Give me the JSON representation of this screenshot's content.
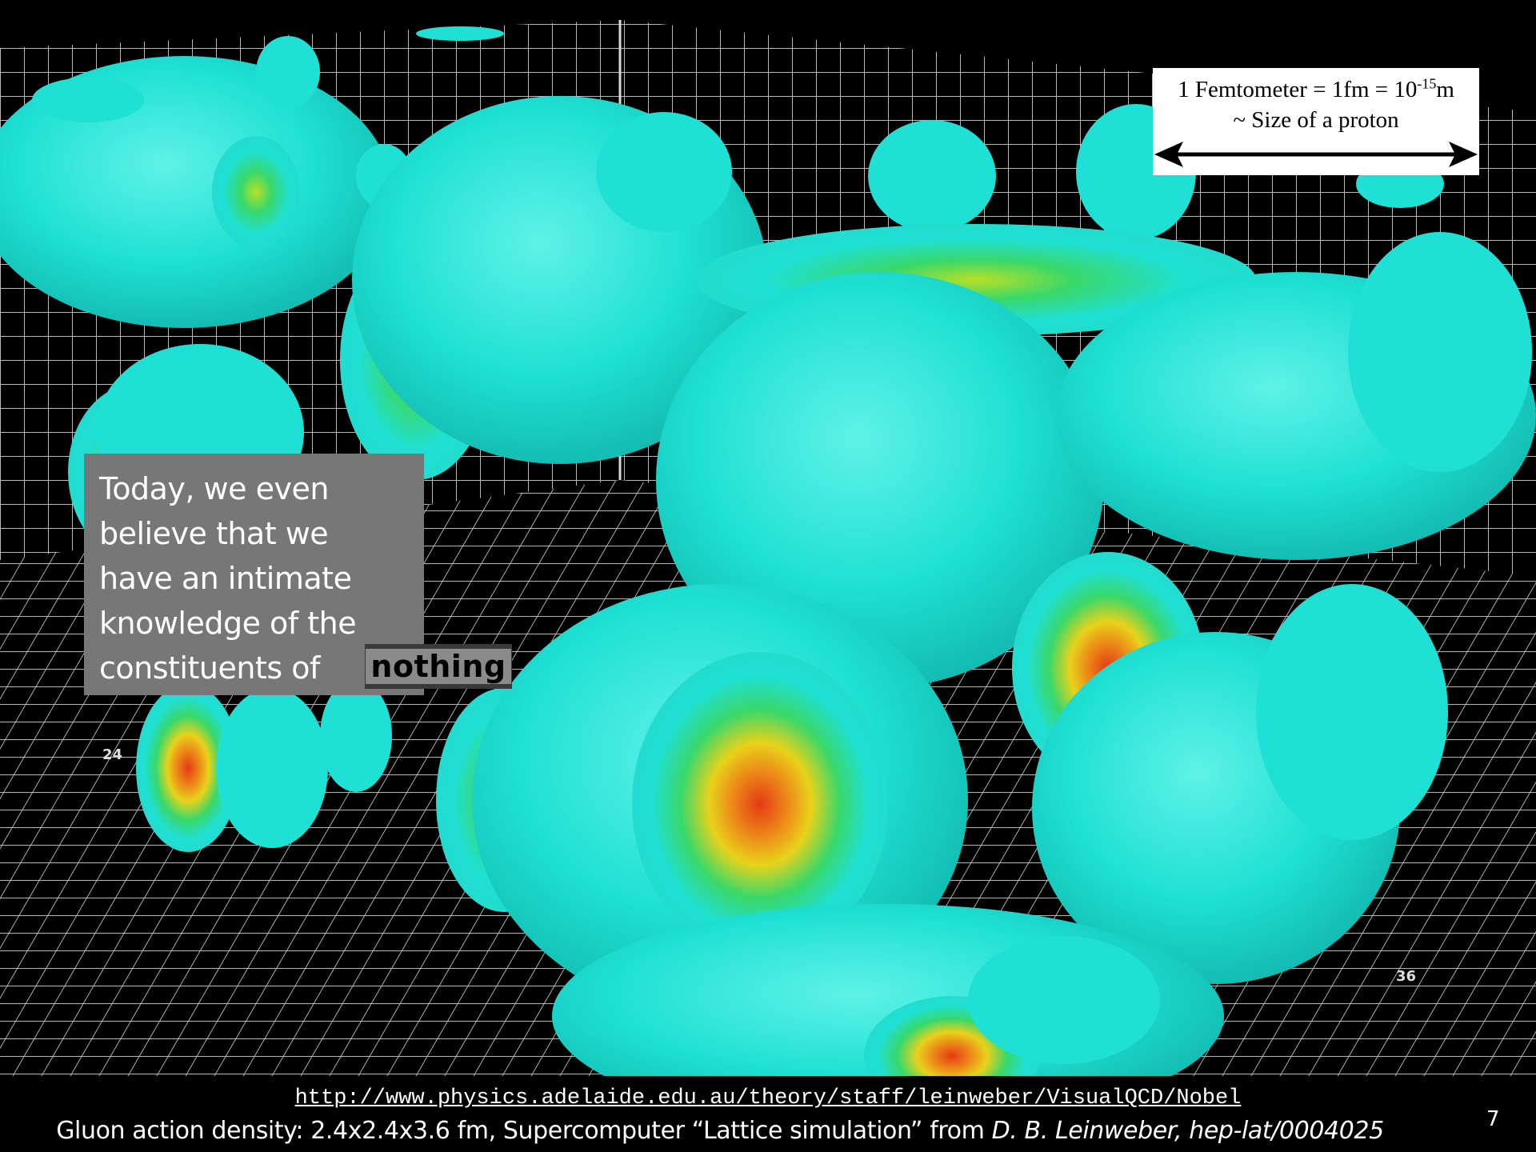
{
  "scale_box": {
    "line1_prefix": "1 Femtometer = 1fm = 10",
    "line1_exponent": "-15",
    "line1_suffix": "m",
    "line2": "~ Size of a proton"
  },
  "callout": {
    "text": "Today, we even\nbelieve that we\nhave an intimate\nknowledge of the\nconstituents of",
    "highlight": "nothing"
  },
  "axis_labels": {
    "left": "24",
    "right": "36"
  },
  "footer": {
    "url": "http://www.physics.adelaide.edu.au/theory/staff/leinweber/VisualQCD/Nobel",
    "caption_plain": "Gluon action density: 2.4x2.4x3.6 fm, Supercomputer “Lattice simulation” from ",
    "caption_italic": "D. B. Leinweber, hep-lat/0004025",
    "page_number": "7"
  },
  "colors": {
    "background": "#000000",
    "grid": "#d8d8d8",
    "blob_cyan": "#1fe0d4",
    "blob_green": "#39d86a",
    "blob_yellow": "#e8d21a",
    "blob_red": "#e43a14",
    "callout_bg": "#777777"
  }
}
